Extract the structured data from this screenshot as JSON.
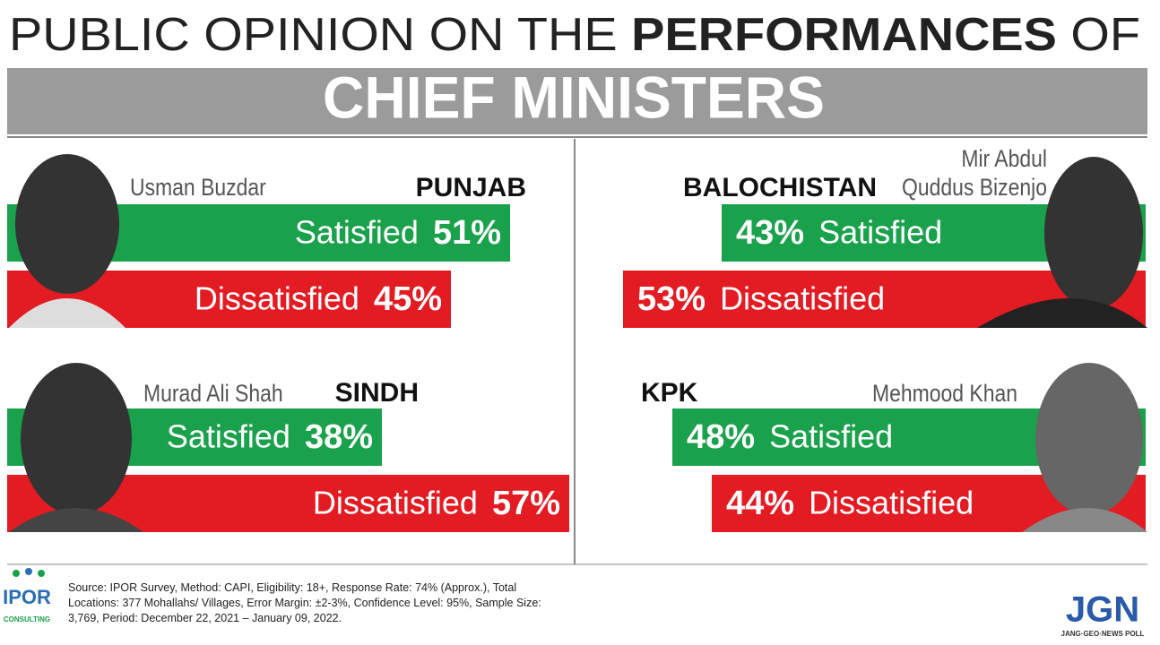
{
  "header": {
    "title_light": "PUBLIC OPINION ON THE",
    "title_bold": "PERFORMANCES",
    "title_end": "OF",
    "subtitle": "CHIEF MINISTERS"
  },
  "chart_data": [
    {
      "type": "bar",
      "region": "PUNJAB",
      "person": "Usman Buzdar",
      "categories": [
        "Satisfied",
        "Dissatisfied"
      ],
      "values": [
        51,
        45
      ],
      "value_labels": [
        "51%",
        "45%"
      ],
      "colors": [
        "#1aa14b",
        "#e31b23"
      ]
    },
    {
      "type": "bar",
      "region": "BALOCHISTAN",
      "person": "Mir Abdul Quddus Bizenjo",
      "categories": [
        "Satisfied",
        "Dissatisfied"
      ],
      "values": [
        43,
        53
      ],
      "value_labels": [
        "43%",
        "53%"
      ],
      "colors": [
        "#1aa14b",
        "#e31b23"
      ]
    },
    {
      "type": "bar",
      "region": "SINDH",
      "person": "Murad Ali Shah",
      "categories": [
        "Satisfied",
        "Dissatisfied"
      ],
      "values": [
        38,
        57
      ],
      "value_labels": [
        "38%",
        "57%"
      ],
      "colors": [
        "#1aa14b",
        "#e31b23"
      ]
    },
    {
      "type": "bar",
      "region": "KPK",
      "person": "Mehmood Khan",
      "categories": [
        "Satisfied",
        "Dissatisfied"
      ],
      "values": [
        48,
        44
      ],
      "value_labels": [
        "48%",
        "44%"
      ],
      "colors": [
        "#1aa14b",
        "#e31b23"
      ]
    }
  ],
  "footer": {
    "source": "Source:  IPOR Survey, Method: CAPI, Eligibility: 18+, Response Rate: 74% (Approx.), Total Locations: 377 Mohallahs/ Villages, Error Margin: ±2-3%, Confidence Level:  95%, Sample Size: 3,769, Period: December 22, 2021 – January 09, 2022.",
    "logo_left": "IPOR",
    "logo_left_sub": "CONSULTING",
    "logo_right": "JGN",
    "logo_right_sub": "JANG·GEO·NEWS POLL"
  }
}
